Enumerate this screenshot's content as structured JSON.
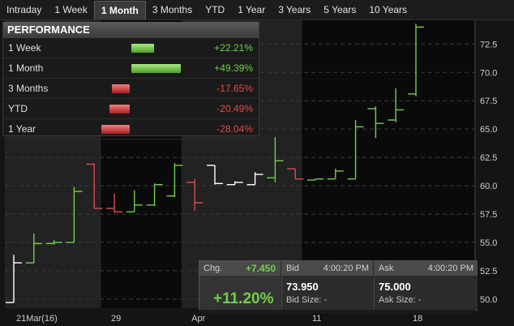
{
  "tabs": [
    {
      "label": "Intraday",
      "active": false
    },
    {
      "label": "1 Week",
      "active": false
    },
    {
      "label": "1 Month",
      "active": true
    },
    {
      "label": "3 Months",
      "active": false
    },
    {
      "label": "YTD",
      "active": false
    },
    {
      "label": "1 Year",
      "active": false
    },
    {
      "label": "3 Years",
      "active": false
    },
    {
      "label": "5 Years",
      "active": false
    },
    {
      "label": "10 Years",
      "active": false
    }
  ],
  "performance": {
    "title": "PERFORMANCE",
    "rows": [
      {
        "label": "1 Week",
        "value": "+22.21%",
        "pct": 22.21
      },
      {
        "label": "1 Month",
        "value": "+49.39%",
        "pct": 49.39
      },
      {
        "label": "3 Months",
        "value": "-17.65%",
        "pct": -17.65
      },
      {
        "label": "YTD",
        "value": "-20.49%",
        "pct": -20.49
      },
      {
        "label": "1 Year",
        "value": "-28.04%",
        "pct": -28.04
      }
    ]
  },
  "quote": {
    "change_label": "Chg.",
    "change_value": "+7.450",
    "change_pct": "+11.20%",
    "bid_label": "Bid",
    "bid_time": "4:00:20 PM",
    "bid_price": "73.950",
    "bid_size": "Bid Size: -",
    "ask_label": "Ask",
    "ask_time": "4:00:20 PM",
    "ask_price": "75.000",
    "ask_size": "Ask Size: -"
  },
  "colors": {
    "up": "#6fd04c",
    "down": "#e04a4a",
    "flat": "#ffffff"
  },
  "chart_data": {
    "type": "line",
    "yticks": [
      50.0,
      52.5,
      55.0,
      57.5,
      60.0,
      62.5,
      65.0,
      67.5,
      70.0,
      72.5
    ],
    "ylim": [
      49.2,
      74.6
    ],
    "xtick_labels": [
      {
        "label": "21Mar(16)",
        "index": 0
      },
      {
        "label": "29",
        "index": 5
      },
      {
        "label": "Apr",
        "index": 9
      },
      {
        "label": "11",
        "index": 15
      },
      {
        "label": "18",
        "index": 20
      }
    ],
    "bars": [
      {
        "high": 53.9,
        "low": 49.7,
        "open": 49.7,
        "close": 53.2,
        "dir": "flat"
      },
      {
        "high": 55.8,
        "low": 53.2,
        "open": 53.2,
        "close": 54.9,
        "dir": "up"
      },
      {
        "high": 55.2,
        "low": 54.8,
        "open": 54.9,
        "close": 55.0,
        "dir": "up"
      },
      {
        "high": 59.9,
        "low": 55.0,
        "open": 55.0,
        "close": 59.5,
        "dir": "up"
      },
      {
        "high": 62.0,
        "low": 58.0,
        "open": 61.9,
        "close": 58.0,
        "dir": "down"
      },
      {
        "high": 59.3,
        "low": 57.6,
        "open": 58.0,
        "close": 57.7,
        "dir": "down"
      },
      {
        "high": 59.6,
        "low": 57.7,
        "open": 57.7,
        "close": 58.3,
        "dir": "up"
      },
      {
        "high": 60.2,
        "low": 58.2,
        "open": 58.3,
        "close": 60.1,
        "dir": "up"
      },
      {
        "high": 62.0,
        "low": 59.0,
        "open": 59.1,
        "close": 61.8,
        "dir": "up"
      },
      {
        "high": 60.6,
        "low": 57.8,
        "open": 60.3,
        "close": 58.5,
        "dir": "down"
      },
      {
        "high": 61.8,
        "low": 60.1,
        "open": 61.8,
        "close": 60.2,
        "dir": "flat"
      },
      {
        "high": 60.4,
        "low": 60.1,
        "open": 60.1,
        "close": 60.3,
        "dir": "flat"
      },
      {
        "high": 61.2,
        "low": 60.1,
        "open": 60.1,
        "close": 61.0,
        "dir": "flat"
      },
      {
        "high": 64.3,
        "low": 60.3,
        "open": 60.7,
        "close": 62.2,
        "dir": "up"
      },
      {
        "high": 61.5,
        "low": 60.6,
        "open": 61.5,
        "close": 60.6,
        "dir": "down"
      },
      {
        "high": 60.6,
        "low": 60.5,
        "open": 60.5,
        "close": 60.6,
        "dir": "up"
      },
      {
        "high": 61.5,
        "low": 60.6,
        "open": 60.6,
        "close": 61.3,
        "dir": "up"
      },
      {
        "high": 65.8,
        "low": 60.6,
        "open": 60.6,
        "close": 65.2,
        "dir": "up"
      },
      {
        "high": 67.0,
        "low": 64.2,
        "open": 66.8,
        "close": 65.5,
        "dir": "up"
      },
      {
        "high": 68.6,
        "low": 65.6,
        "open": 65.8,
        "close": 66.7,
        "dir": "up"
      },
      {
        "high": 74.3,
        "low": 67.9,
        "open": 68.1,
        "close": 74.0,
        "dir": "up"
      }
    ]
  }
}
